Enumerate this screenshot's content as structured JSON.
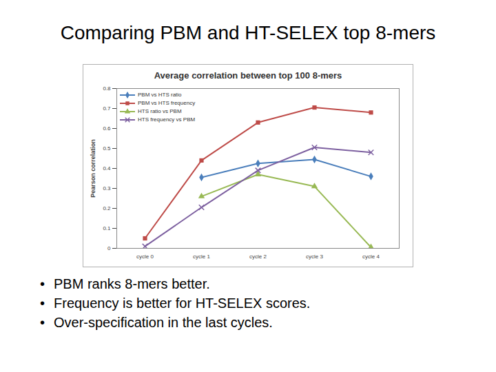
{
  "title": "Comparing PBM and HT-SELEX top 8-mers",
  "bullets": [
    "PBM ranks 8-mers better.",
    "Frequency is better for HT-SELEX scores.",
    "Over-specification in the last cycles."
  ],
  "chart_data": {
    "type": "line",
    "title": "Average correlation between top 100 8-mers",
    "y_label": "Pearson correlation",
    "categories": [
      "cycle 0",
      "cycle 1",
      "cycle 2",
      "cycle 3",
      "cycle 4"
    ],
    "series": [
      {
        "name": "PBM vs HTS ratio",
        "color": "#4a7ebb",
        "marker": "diamond",
        "values": [
          null,
          0.355,
          0.425,
          0.445,
          0.36
        ]
      },
      {
        "name": "PBM vs HTS frequency",
        "color": "#be4b48",
        "marker": "square",
        "values": [
          0.05,
          0.44,
          0.63,
          0.705,
          0.68
        ]
      },
      {
        "name": "HTS ratio vs PBM",
        "color": "#98b954",
        "marker": "triangle",
        "values": [
          null,
          0.26,
          0.37,
          0.31,
          0.005
        ]
      },
      {
        "name": "HTS frequency vs PBM",
        "color": "#7d60a0",
        "marker": "times",
        "values": [
          0.01,
          0.205,
          0.39,
          0.505,
          0.48
        ]
      }
    ],
    "ylim": [
      0,
      0.8
    ],
    "yticks": [
      0,
      0.1,
      0.2,
      0.3,
      0.4,
      0.5,
      0.6,
      0.7,
      0.8
    ],
    "grid": false,
    "legend": "top-left"
  }
}
